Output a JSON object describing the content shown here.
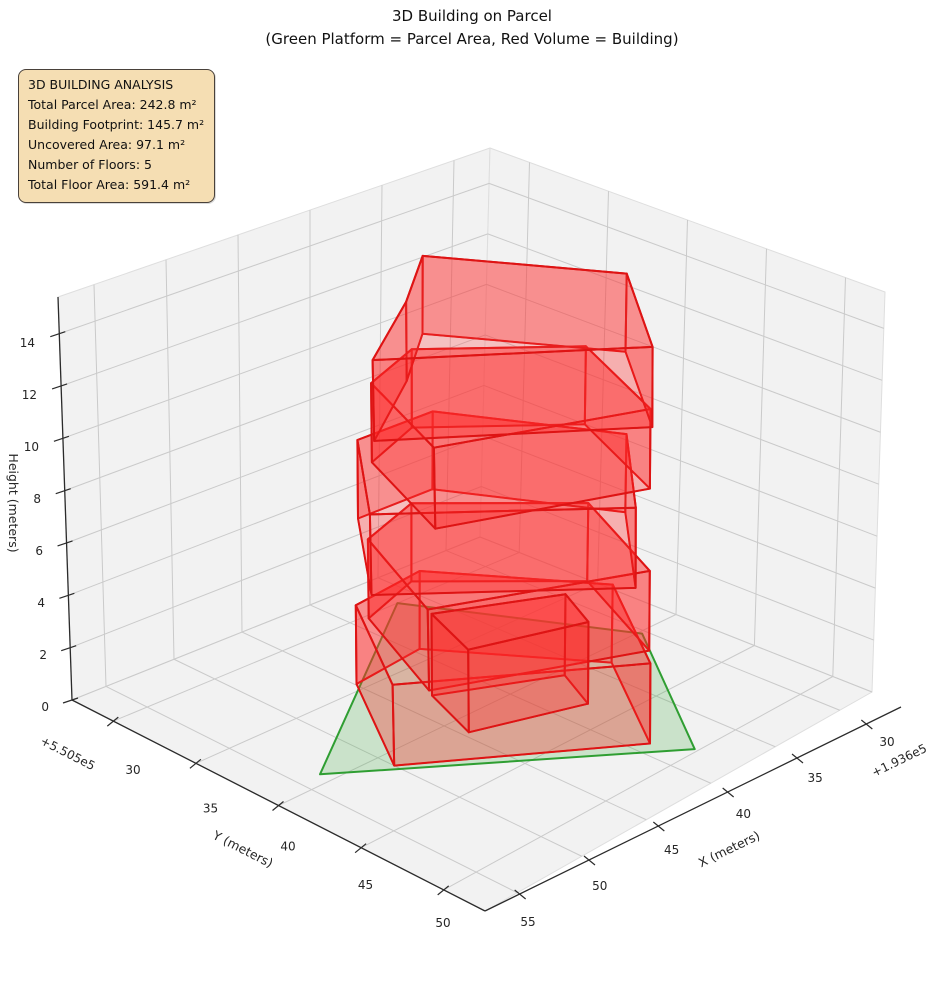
{
  "title": {
    "line1": "3D Building on Parcel",
    "line2": "(Green Platform = Parcel Area, Red Volume = Building)"
  },
  "info_box": {
    "title": "3D BUILDING ANALYSIS",
    "lines": [
      "Total Parcel Area: 242.8 m²",
      "Building Footprint: 145.7 m²",
      "Uncovered Area: 97.1 m²",
      "Number of Floors: 5",
      "Total Floor Area: 591.4 m²"
    ],
    "background": "#f5deb3",
    "border_color": "#49413a"
  },
  "axes": {
    "x": {
      "label": "X (meters)",
      "ticks": [
        30,
        35,
        40,
        45,
        50,
        55
      ],
      "offset_text": "+1.936e5",
      "range": [
        27.5,
        57.5
      ]
    },
    "y": {
      "label": "Y (meters)",
      "ticks": [
        30,
        35,
        40,
        45,
        50
      ],
      "offset_text": "+5.505e5",
      "range": [
        27.5,
        52.5
      ]
    },
    "z": {
      "label": "Height (meters)",
      "ticks": [
        0,
        2,
        4,
        6,
        8,
        10,
        12,
        14
      ],
      "range": [
        0,
        15.4
      ]
    }
  },
  "colors": {
    "pane": "#f2f2f2",
    "pane_edge": "#dedede",
    "grid": "#cacaca",
    "spine": "#2b2b2b",
    "tick_label": "#262626",
    "building_wall": "rgba(255,38,38,0.33)",
    "building_top": "rgba(255,60,60,0.27)",
    "building_edge": "#de1414",
    "parcel_fill": "rgba(60,170,60,0.22)",
    "parcel_edge": "#2f9e32"
  },
  "chart_data": {
    "type": "3d-building-plot",
    "stats": {
      "total_parcel_area_m2": 242.8,
      "building_footprint_m2": 145.7,
      "uncovered_area_m2": 97.1,
      "number_of_floors": 5,
      "total_floor_area_m2": 591.4
    },
    "parcel": {
      "polygon_xy": [
        [
          53.5,
          39.3
        ],
        [
          36.5,
          30.0
        ],
        [
          30.3,
          40.2
        ],
        [
          37.9,
          49.8
        ]
      ],
      "z": 0
    },
    "building": {
      "floors": [
        {
          "z0": 0,
          "z1": 3,
          "polygon_xy": [
            [
              39.6,
              34.0
            ],
            [
              33.8,
              41.2
            ],
            [
              39.0,
              47.9
            ],
            [
              50.0,
              41.0
            ],
            [
              44.9,
              34.5
            ]
          ]
        },
        {
          "z0": 3,
          "z1": 6,
          "polygon_xy": [
            [
              40.8,
              34.5
            ],
            [
              34.4,
              40.1
            ],
            [
              38.0,
              47.0
            ],
            [
              49.1,
              42.5
            ],
            [
              45.5,
              35.8
            ]
          ]
        },
        {
          "z0": 6,
          "z1": 9,
          "polygon_xy": [
            [
              38.8,
              34.1
            ],
            [
              33.9,
              42.0
            ],
            [
              39.9,
              47.7
            ],
            [
              50.0,
              39.8
            ],
            [
              44.1,
              34.0
            ]
          ]
        },
        {
          "z0": 9,
          "z1": 12,
          "polygon_xy": [
            [
              41.0,
              34.7
            ],
            [
              34.5,
              39.9
            ],
            [
              37.8,
              46.8
            ],
            [
              48.8,
              42.8
            ],
            [
              45.5,
              36.1
            ]
          ]
        },
        {
          "z0": 12,
          "z1": 15,
          "polygon_xy": [
            [
              39.2,
              33.8
            ],
            [
              33.6,
              41.6
            ],
            [
              39.3,
              48.2
            ],
            [
              50.4,
              40.5
            ],
            [
              44.0,
              37.0
            ]
          ]
        }
      ],
      "annex": {
        "z0": 0,
        "z1": 3.1,
        "polygon_xy": [
          [
            36.5,
            40.5
          ],
          [
            38.0,
            43.2
          ],
          [
            44.6,
            41.2
          ],
          [
            43.0,
            37.6
          ]
        ]
      }
    }
  }
}
